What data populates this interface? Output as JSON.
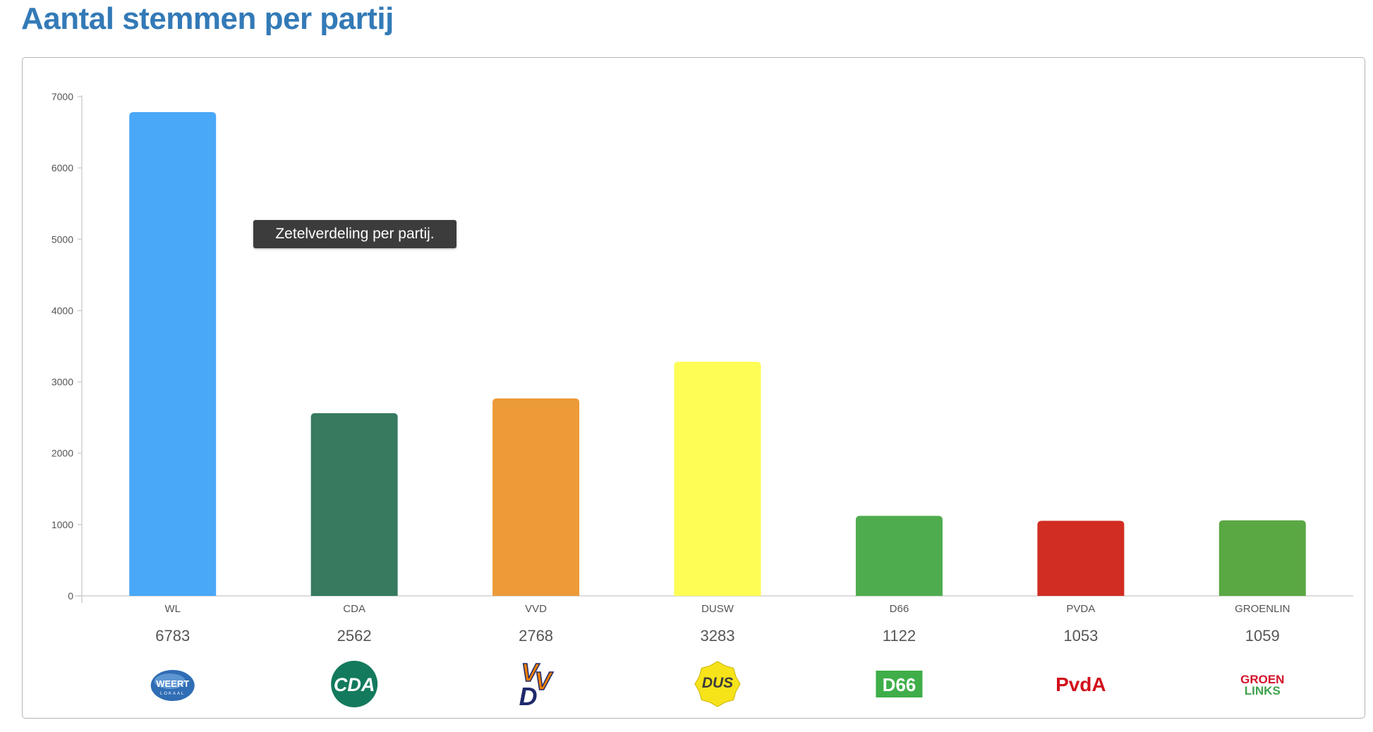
{
  "page": {
    "title": "Aantal stemmen per partij",
    "tooltip": "Zetelverdeling per partij."
  },
  "chart_data": {
    "type": "bar",
    "title": "",
    "xlabel": "",
    "ylabel": "",
    "ylim": [
      0,
      7000
    ],
    "yticks": [
      0,
      1000,
      2000,
      3000,
      4000,
      5000,
      6000,
      7000
    ],
    "categories": [
      "WL",
      "CDA",
      "VVD",
      "DUSW",
      "D66",
      "PVDA",
      "GROENLIN"
    ],
    "values": [
      6783,
      2562,
      2768,
      3283,
      1122,
      1053,
      1059
    ],
    "value_labels": [
      "6783",
      "2562",
      "2768",
      "3283",
      "1122",
      "1053",
      "1059"
    ],
    "colors": [
      "#4aa8f8",
      "#367a5f",
      "#ec9b38",
      "#fdfd55",
      "#4fac4e",
      "#d12d22",
      "#5aa843"
    ],
    "grid": false,
    "legend": "none"
  },
  "logos": [
    {
      "party": "WL",
      "icon": "weert-lokaal-logo-icon",
      "text": "WEERT",
      "sub": "LOKAAL",
      "color": "#2f6db4"
    },
    {
      "party": "CDA",
      "icon": "cda-logo-icon",
      "text": "CDA",
      "color": "#137a5d"
    },
    {
      "party": "VVD",
      "icon": "vvd-logo-icon",
      "letters": [
        "V",
        "V",
        "D"
      ],
      "color": "#ef7d00",
      "color2": "#1f2a6b"
    },
    {
      "party": "DUSW",
      "icon": "dus-logo-icon",
      "text": "DUS",
      "color": "#f7e31a",
      "color2": "#3c3c3c"
    },
    {
      "party": "D66",
      "icon": "d66-logo-icon",
      "text": "D66",
      "color": "#3fae49"
    },
    {
      "party": "PVDA",
      "icon": "pvda-logo-icon",
      "text": "PvdA",
      "color": "#d20f1b"
    },
    {
      "party": "GROENLIN",
      "icon": "groenlinks-logo-icon",
      "text": "GROEN",
      "text2": "LINKS",
      "color": "#d2112a"
    }
  ]
}
